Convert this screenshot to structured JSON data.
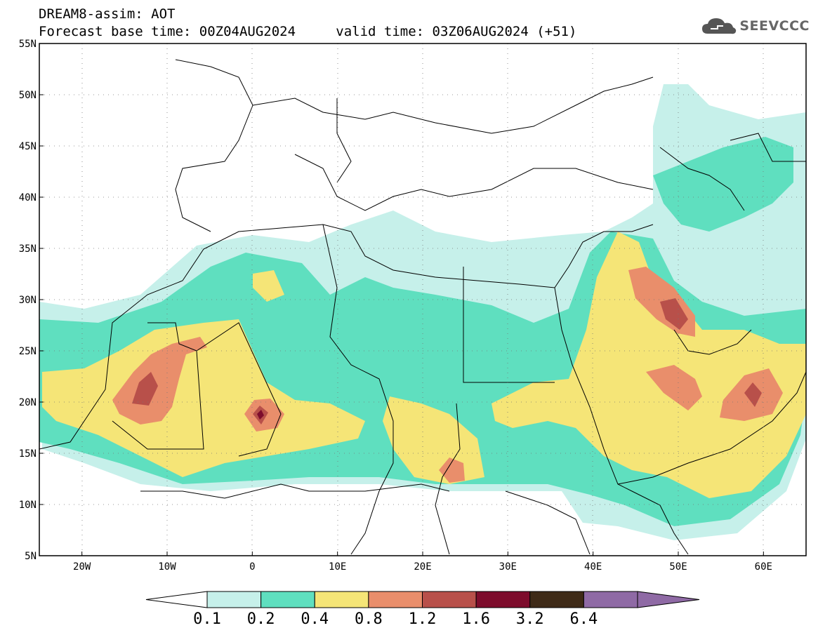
{
  "header": {
    "title": "DREAM8-assim: AOT",
    "base_time": "Forecast base time: 00Z04AUG2024",
    "valid_time": "valid time: 03Z06AUG2024 (+51)"
  },
  "logo": {
    "text": "SEEVCCC",
    "icon": "cloud-icon"
  },
  "map": {
    "lon_range": [
      -25,
      65
    ],
    "lat_range": [
      5,
      55
    ],
    "lat_labels": [
      "5N",
      "10N",
      "15N",
      "20N",
      "25N",
      "30N",
      "35N",
      "40N",
      "45N",
      "50N",
      "55N"
    ],
    "lon_labels": [
      "20W",
      "10W",
      "0",
      "10E",
      "20E",
      "30E",
      "40E",
      "50E",
      "60E"
    ],
    "grid": "dotted"
  },
  "colorbar": {
    "labels": [
      "0.1",
      "0.2",
      "0.4",
      "0.8",
      "1.2",
      "1.6",
      "3.2",
      "6.4"
    ],
    "colors": [
      "#c6f0ea",
      "#5fdfbf",
      "#f5e577",
      "#e98e6b",
      "#b8504a",
      "#7d0c2c",
      "#3e2a17",
      "#8f6aa5"
    ]
  }
}
